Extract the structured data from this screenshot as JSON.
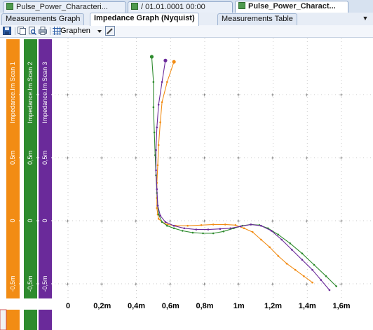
{
  "document_tabs": [
    {
      "label": "Pulse_Power_Characteri...",
      "active": false
    },
    {
      "label": "/ 01.01.0001 00:00",
      "active": false
    },
    {
      "label": "Pulse_Power_Charact...",
      "active": true
    }
  ],
  "view_tabs": [
    {
      "label": "Measurements Graph",
      "active": false
    },
    {
      "label": "Impedance Graph (Nyquist)",
      "active": true
    },
    {
      "label": "Measurements Table",
      "active": false
    }
  ],
  "toolbar": {
    "graphen_label": "Graphen",
    "icons": [
      "save-icon",
      "copy-icon",
      "print-preview-icon",
      "print-icon",
      "grid-icon",
      "dropdown-arrow-icon",
      "pen-icon"
    ]
  },
  "colors": {
    "scan1": "#f28c14",
    "scan2": "#2e8b2e",
    "scan3": "#6a2a9a",
    "grid": "#b8b8b8"
  },
  "axis_labels": {
    "scan1": "Impedance.Im  Scan 1",
    "scan2": "Impedance.Im  Scan 2",
    "scan3": "Impedance.Im  Scan 3",
    "ticks": [
      "0,5m",
      "0",
      "-0,5m"
    ]
  },
  "chart_data": {
    "type": "line",
    "title": "",
    "xlabel": "",
    "ylabel": "Impedance.Im",
    "x_ticks": [
      "0",
      "0,2m",
      "0,4m",
      "0,6m",
      "0,8m",
      "1m",
      "1,2m",
      "1,4m",
      "1,6m"
    ],
    "y_ticks": [
      "0,5m",
      "0",
      "-0,5m"
    ],
    "xlim": [
      0,
      0.0016
    ],
    "ylim": [
      -0.0007,
      0.0013
    ],
    "grid": true,
    "series": [
      {
        "name": "Scan 1",
        "color": "#f28c14",
        "x": [
          0.00062,
          0.00058,
          0.00055,
          0.00054,
          0.00053,
          0.000525,
          0.00052,
          0.00052,
          0.00052,
          0.000525,
          0.00053,
          0.00055,
          0.00058,
          0.00063,
          0.0007,
          0.00078,
          0.00085,
          0.00092,
          0.00098,
          0.00103,
          0.00108,
          0.00113,
          0.00118,
          0.00123,
          0.00128,
          0.00133,
          0.00138,
          0.00143
        ],
        "y": [
          0.00126,
          0.0011,
          0.00094,
          0.00078,
          0.0006,
          0.00044,
          0.0003,
          0.00018,
          0.0001,
          5e-05,
          1.5e-05,
          -1e-05,
          -3e-05,
          -4e-05,
          -4e-05,
          -3.5e-05,
          -3e-05,
          -3e-05,
          -3.5e-05,
          -6e-05,
          -9e-05,
          -0.00015,
          -0.00021,
          -0.00028,
          -0.00034,
          -0.00039,
          -0.00044,
          -0.00049
        ]
      },
      {
        "name": "Scan 2",
        "color": "#2e8b2e",
        "x": [
          0.00049,
          0.0005,
          0.0005,
          0.000505,
          0.00051,
          0.000515,
          0.00052,
          0.000525,
          0.00053,
          0.00055,
          0.00058,
          0.00062,
          0.00067,
          0.00073,
          0.00079,
          0.00085,
          0.00091,
          0.00097,
          0.00102,
          0.00107,
          0.00112,
          0.00117,
          0.00123,
          0.0013,
          0.00137,
          0.00144,
          0.00151,
          0.00157
        ],
        "y": [
          0.0013,
          0.0011,
          0.0009,
          0.0007,
          0.00052,
          0.00036,
          0.00022,
          0.00012,
          5e-05,
          -1e-05,
          -4e-05,
          -6e-05,
          -8e-05,
          -9.5e-05,
          -0.0001,
          -0.0001,
          -8.5e-05,
          -6e-05,
          -4e-05,
          -3e-05,
          -3.5e-05,
          -6e-05,
          -0.00011,
          -0.00018,
          -0.00026,
          -0.00035,
          -0.00044,
          -0.00052
        ]
      },
      {
        "name": "Scan 3",
        "color": "#6a2a9a",
        "x": [
          0.00057,
          0.00055,
          0.00053,
          0.00052,
          0.000515,
          0.000515,
          0.00052,
          0.000525,
          0.00054,
          0.00057,
          0.00062,
          0.00068,
          0.00075,
          0.00082,
          0.00089,
          0.00095,
          0.00101,
          0.00107,
          0.00113,
          0.00119,
          0.00125,
          0.00131,
          0.00137,
          0.00143,
          0.00148,
          0.00153
        ],
        "y": [
          0.00127,
          0.0011,
          0.00092,
          0.00074,
          0.00056,
          0.0004,
          0.00025,
          0.00012,
          4e-05,
          -1e-05,
          -4e-05,
          -6e-05,
          -7e-05,
          -7e-05,
          -6.5e-05,
          -6e-05,
          -4.5e-05,
          -3e-05,
          -4e-05,
          -8e-05,
          -0.00015,
          -0.00023,
          -0.00031,
          -0.00039,
          -0.00047,
          -0.00055
        ]
      }
    ]
  }
}
